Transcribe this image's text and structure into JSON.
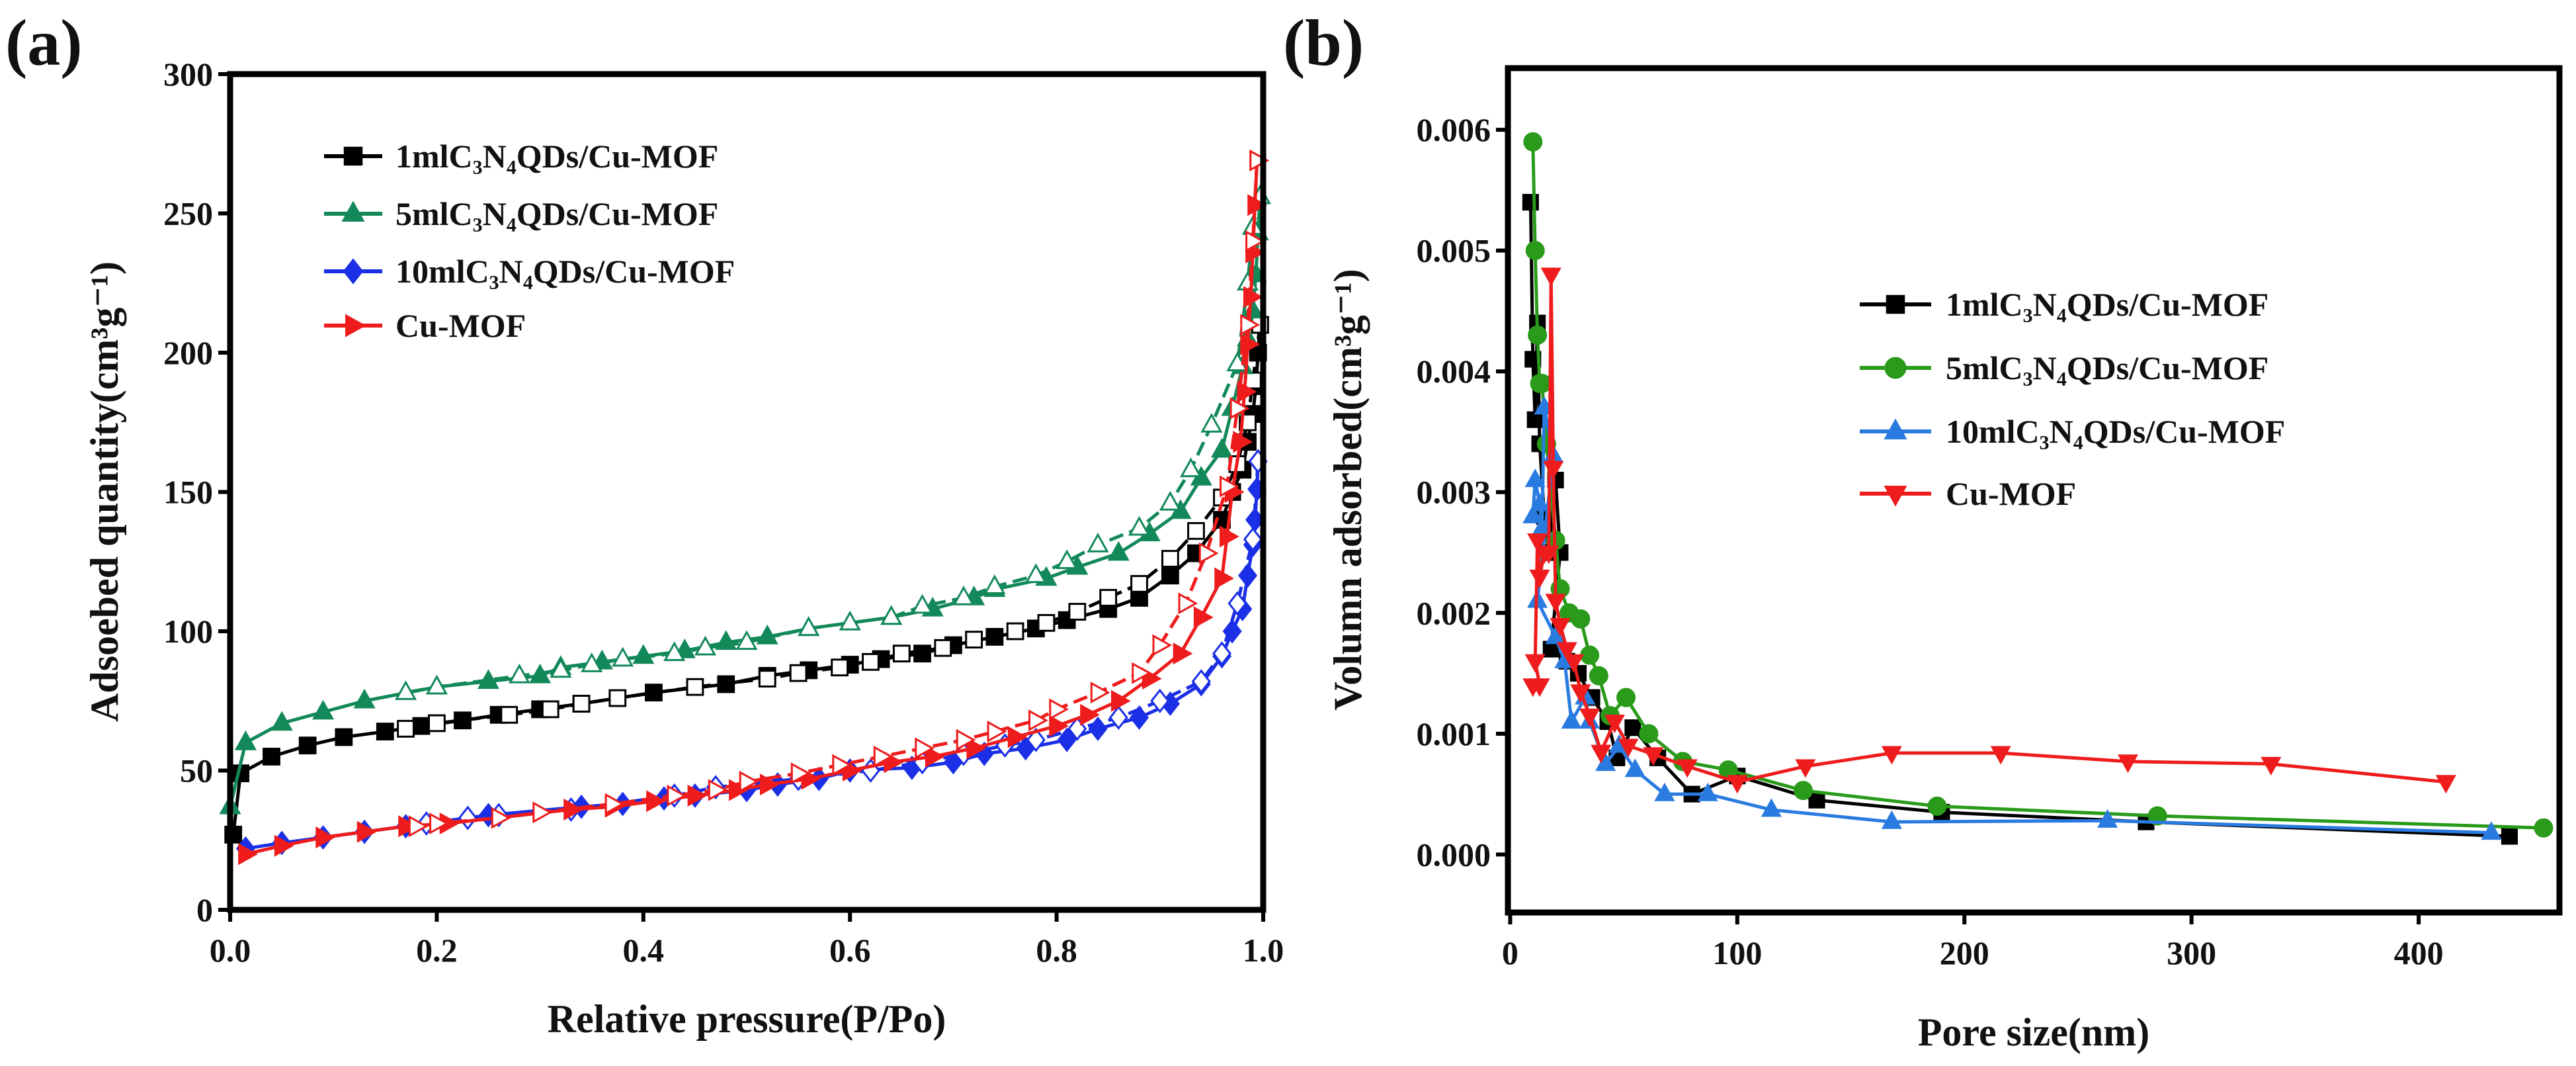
{
  "chart_data": [
    {
      "type": "line",
      "panel_label": "(a)",
      "xlabel": "Relative pressure(P/Po)",
      "ylabel": "Adsoebed quantity(cm³g⁻¹)",
      "xlim": [
        0,
        1.0
      ],
      "ylim": [
        0,
        300
      ],
      "xticks": [
        0,
        0.2,
        0.4,
        0.6,
        0.8,
        1.0
      ],
      "xtick_labels": [
        "0.0",
        "0.2",
        "0.4",
        "0.6",
        "0.8",
        "1.0"
      ],
      "yticks": [
        0,
        50,
        100,
        150,
        200,
        250,
        300
      ],
      "ytick_labels": [
        "0",
        "50",
        "100",
        "150",
        "200",
        "250",
        "300"
      ],
      "grid": false,
      "legend_position": "top-left",
      "legend": [
        {
          "label": "1mlC₃N₄QDs/Cu-MOF",
          "color": "#000000",
          "marker": "square"
        },
        {
          "label": "5mlC₃N₄QDs/Cu-MOF",
          "color": "#13895a",
          "marker": "triangle-up"
        },
        {
          "label": "10mlC₃N₄QDs/Cu-MOF",
          "color": "#1a2fe6",
          "marker": "diamond"
        },
        {
          "label": "Cu-MOF",
          "color": "#ee1c1c",
          "marker": "triangle-right"
        }
      ],
      "series": [
        {
          "name": "1mlC₃N₄QDs/Cu-MOF adsorption",
          "color": "#000000",
          "marker": "square",
          "filled": true,
          "dash": false,
          "x": [
            0.003,
            0.01,
            0.04,
            0.075,
            0.11,
            0.15,
            0.185,
            0.225,
            0.26,
            0.3,
            0.34,
            0.41,
            0.48,
            0.52,
            0.56,
            0.6,
            0.63,
            0.67,
            0.7,
            0.74,
            0.78,
            0.81,
            0.85,
            0.88,
            0.91,
            0.935,
            0.96,
            0.97,
            0.98,
            0.985,
            0.99,
            0.993,
            0.995,
            0.997
          ],
          "y": [
            27,
            49,
            55,
            59,
            62,
            64,
            66,
            68,
            70,
            72,
            74,
            78,
            81,
            84,
            86,
            88,
            90,
            92,
            95,
            98,
            101,
            104,
            108,
            112,
            120,
            128,
            140,
            150,
            158,
            168,
            178,
            188,
            200,
            210
          ]
        },
        {
          "name": "1mlC₃N₄QDs/Cu-MOF desorption",
          "color": "#000000",
          "marker": "square",
          "filled": false,
          "dash": true,
          "x": [
            0.997,
            0.99,
            0.985,
            0.975,
            0.96,
            0.935,
            0.91,
            0.88,
            0.85,
            0.82,
            0.79,
            0.76,
            0.72,
            0.69,
            0.65,
            0.62,
            0.59,
            0.55,
            0.52,
            0.45,
            0.375,
            0.34,
            0.31,
            0.27,
            0.2,
            0.17
          ],
          "y": [
            210,
            190,
            175,
            160,
            148,
            136,
            126,
            117,
            112,
            107,
            103,
            100,
            97,
            94,
            92,
            89,
            87,
            85,
            83,
            80,
            76,
            74,
            72,
            70,
            67,
            65
          ]
        },
        {
          "name": "5mlC₃N₄QDs/Cu-MOF adsorption",
          "color": "#13895a",
          "marker": "triangle-up",
          "filled": true,
          "dash": false,
          "x": [
            0.0,
            0.015,
            0.05,
            0.09,
            0.13,
            0.2,
            0.25,
            0.3,
            0.32,
            0.36,
            0.4,
            0.44,
            0.48,
            0.52,
            0.56,
            0.6,
            0.64,
            0.68,
            0.72,
            0.74,
            0.79,
            0.82,
            0.86,
            0.89,
            0.92,
            0.94,
            0.96,
            0.97,
            0.98,
            0.985,
            0.99,
            0.993,
            0.995,
            0.997
          ],
          "y": [
            37,
            60,
            67,
            71,
            75,
            80,
            82,
            84,
            87,
            89,
            91,
            93,
            96,
            98,
            101,
            103,
            105,
            108,
            112,
            115,
            119,
            123,
            128,
            135,
            143,
            155,
            165,
            180,
            195,
            205,
            215,
            228,
            243,
            256
          ]
        },
        {
          "name": "5mlC₃N₄QDs/Cu-MOF desorption",
          "color": "#13895a",
          "marker": "triangle-up",
          "filled": false,
          "dash": true,
          "x": [
            0.997,
            0.99,
            0.985,
            0.975,
            0.95,
            0.93,
            0.91,
            0.88,
            0.84,
            0.81,
            0.78,
            0.74,
            0.71,
            0.67,
            0.64,
            0.6,
            0.56,
            0.5,
            0.46,
            0.43,
            0.38,
            0.35,
            0.32,
            0.28,
            0.2,
            0.17
          ],
          "y": [
            256,
            245,
            225,
            196,
            174,
            158,
            146,
            137,
            131,
            125,
            120,
            116,
            112,
            109,
            105,
            103,
            101,
            96,
            94,
            92,
            90,
            88,
            86,
            84,
            80,
            78
          ]
        },
        {
          "name": "10mlC₃N₄QDs/Cu-MOF adsorption",
          "color": "#1a2fe6",
          "marker": "diamond",
          "filled": true,
          "dash": false,
          "x": [
            0.015,
            0.05,
            0.09,
            0.13,
            0.17,
            0.25,
            0.34,
            0.38,
            0.42,
            0.45,
            0.5,
            0.53,
            0.57,
            0.6,
            0.66,
            0.7,
            0.73,
            0.77,
            0.81,
            0.84,
            0.88,
            0.91,
            0.94,
            0.96,
            0.97,
            0.98,
            0.985,
            0.99,
            0.992,
            0.994,
            0.995
          ],
          "y": [
            22,
            24,
            26,
            28,
            30,
            34,
            37,
            38,
            40,
            41,
            43,
            45,
            47,
            50,
            51,
            53,
            56,
            58,
            61,
            65,
            69,
            74,
            81,
            91,
            100,
            108,
            120,
            131,
            140,
            151,
            161
          ]
        },
        {
          "name": "10mlC₃N₄QDs/Cu-MOF desorption",
          "color": "#1a2fe6",
          "marker": "diamond",
          "filled": false,
          "dash": true,
          "x": [
            0.995,
            0.99,
            0.975,
            0.96,
            0.94,
            0.9,
            0.86,
            0.82,
            0.78,
            0.75,
            0.71,
            0.67,
            0.62,
            0.55,
            0.47,
            0.43,
            0.33,
            0.26,
            0.23,
            0.19
          ],
          "y": [
            161,
            133,
            110,
            92,
            82,
            75,
            69,
            65,
            61,
            59,
            56,
            53,
            50,
            47,
            44,
            41,
            36,
            34,
            33,
            31
          ]
        },
        {
          "name": "Cu-MOF adsorption",
          "color": "#ee1c1c",
          "marker": "triangle-right",
          "filled": true,
          "dash": false,
          "x": [
            0.015,
            0.05,
            0.09,
            0.13,
            0.17,
            0.21,
            0.33,
            0.37,
            0.41,
            0.45,
            0.49,
            0.52,
            0.56,
            0.6,
            0.64,
            0.68,
            0.72,
            0.76,
            0.8,
            0.83,
            0.86,
            0.89,
            0.92,
            0.94,
            0.96,
            0.965,
            0.97,
            0.978,
            0.982,
            0.985,
            0.988,
            0.99,
            0.992,
            0.994
          ],
          "y": [
            20,
            23,
            26,
            28,
            30,
            31,
            36,
            37,
            39,
            41,
            43,
            45,
            47,
            50,
            53,
            55,
            58,
            62,
            66,
            70,
            75,
            83,
            92,
            105,
            119,
            134,
            150,
            168,
            186,
            203,
            220,
            236,
            253,
            269
          ]
        },
        {
          "name": "Cu-MOF desorption",
          "color": "#ee1c1c",
          "marker": "triangle-right",
          "filled": false,
          "dash": true,
          "x": [
            0.994,
            0.99,
            0.985,
            0.975,
            0.965,
            0.945,
            0.925,
            0.9,
            0.88,
            0.84,
            0.8,
            0.78,
            0.74,
            0.71,
            0.67,
            0.63,
            0.59,
            0.55,
            0.5,
            0.47,
            0.43,
            0.37,
            0.3,
            0.26,
            0.2,
            0.18
          ],
          "y": [
            269,
            240,
            210,
            180,
            152,
            128,
            110,
            95,
            85,
            78,
            72,
            68,
            64,
            61,
            58,
            55,
            52,
            49,
            46,
            43,
            41,
            38,
            35,
            33,
            31,
            30
          ]
        }
      ]
    },
    {
      "type": "line",
      "panel_label": "(b)",
      "xlabel": "Pore size(nm)",
      "ylabel": "Volumn adsorbed(cm³g⁻¹)",
      "xlim": [
        -1,
        462
      ],
      "ylim": [
        -0.00048,
        0.00651
      ],
      "xticks": [
        0,
        100,
        200,
        300,
        400
      ],
      "xtick_labels": [
        "0",
        "100",
        "200",
        "300",
        "400"
      ],
      "yticks": [
        0,
        0.001,
        0.002,
        0.003,
        0.004,
        0.005,
        0.006
      ],
      "ytick_labels": [
        "0.000",
        "0.001",
        "0.002",
        "0.003",
        "0.004",
        "0.005",
        "0.006"
      ],
      "grid": false,
      "legend_position": "center-right",
      "legend": [
        {
          "label": "1mlC₃N₄QDs/Cu-MOF",
          "color": "#000000",
          "marker": "square"
        },
        {
          "label": "5mlC₃N₄QDs/Cu-MOF",
          "color": "#2a9a1a",
          "marker": "circle"
        },
        {
          "label": "10mlC₃N₄QDs/Cu-MOF",
          "color": "#2a7be0",
          "marker": "triangle-up"
        },
        {
          "label": "Cu-MOF",
          "color": "#ee1c1c",
          "marker": "triangle-down"
        }
      ],
      "series": [
        {
          "name": "1mlC₃N₄QDs/Cu-MOF",
          "color": "#000000",
          "marker": "square",
          "filled": true,
          "dash": false,
          "x": [
            9,
            10,
            11,
            12,
            13,
            15,
            17,
            20,
            22,
            18,
            25,
            30,
            36,
            43,
            47,
            54,
            65,
            80,
            100,
            135,
            190,
            280,
            440
          ],
          "y": [
            0.0054,
            0.0041,
            0.0036,
            0.0044,
            0.0034,
            0.0028,
            0.0025,
            0.0031,
            0.0025,
            0.0017,
            0.0016,
            0.0015,
            0.0013,
            0.0011,
            0.0008,
            0.00105,
            0.0008,
            0.0005,
            0.00065,
            0.00045,
            0.00035,
            0.00027,
            0.00015
          ]
        },
        {
          "name": "5mlC₃N₄QDs/Cu-MOF",
          "color": "#2a9a1a",
          "marker": "circle",
          "filled": true,
          "dash": false,
          "x": [
            10,
            11,
            12,
            13,
            14,
            16,
            20,
            22,
            26,
            31,
            35,
            39,
            44,
            51,
            61,
            76,
            96,
            129,
            188,
            285,
            455
          ],
          "y": [
            0.0059,
            0.005,
            0.0043,
            0.0039,
            0.0039,
            0.0034,
            0.0026,
            0.0022,
            0.002,
            0.00195,
            0.00165,
            0.00148,
            0.00115,
            0.0013,
            0.001,
            0.00077,
            0.0007,
            0.00053,
            0.0004,
            0.00032,
            0.00022
          ]
        },
        {
          "name": "10mlC₃N₄QDs/Cu-MOF",
          "color": "#2a7be0",
          "marker": "triangle-up",
          "filled": true,
          "dash": false,
          "x": [
            10,
            11,
            13,
            14,
            15,
            19,
            12,
            20,
            24,
            27,
            33,
            35,
            42,
            48,
            55,
            68,
            87,
            115,
            168,
            263,
            432
          ],
          "y": [
            0.0028,
            0.0031,
            0.0029,
            0.0027,
            0.0037,
            0.0033,
            0.0021,
            0.0018,
            0.0016,
            0.0011,
            0.0013,
            0.0011,
            0.00075,
            0.0009,
            0.0007,
            0.0005,
            0.0005,
            0.00037,
            0.00027,
            0.00028,
            0.00018
          ]
        },
        {
          "name": "Cu-MOF",
          "color": "#ee1c1c",
          "marker": "triangle-down",
          "filled": true,
          "dash": false,
          "x": [
            10,
            13,
            11,
            12,
            13,
            15,
            17,
            18,
            19,
            20,
            22,
            25,
            28,
            31,
            35,
            40,
            46,
            52,
            63,
            78,
            100,
            130,
            168,
            216,
            272,
            335,
            412
          ],
          "y": [
            0.0014,
            0.0014,
            0.0016,
            0.0026,
            0.0023,
            0.0025,
            0.0025,
            0.0048,
            0.0032,
            0.0021,
            0.0019,
            0.0017,
            0.0016,
            0.00135,
            0.00115,
            0.00085,
            0.0011,
            0.0009,
            0.00083,
            0.00073,
            0.0006,
            0.00073,
            0.00084,
            0.00084,
            0.00077,
            0.00075,
            0.0006
          ]
        }
      ]
    }
  ]
}
